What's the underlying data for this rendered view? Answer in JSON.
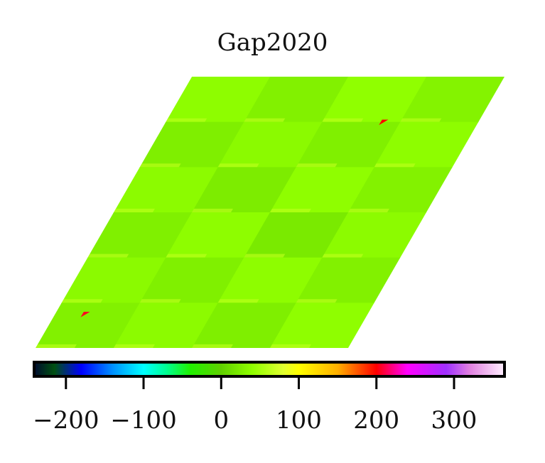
{
  "chart_data": {
    "type": "heatmap",
    "title": "Gap2020",
    "grid": false,
    "rows": [
      [
        38,
        28,
        40,
        30
      ],
      [
        26,
        36,
        27,
        38
      ],
      [
        37,
        24,
        39,
        29
      ],
      [
        27,
        38,
        22,
        37
      ],
      [
        36,
        27,
        38,
        28
      ],
      [
        28,
        37,
        26,
        39
      ]
    ],
    "hotspots": [
      {
        "row": 0.95,
        "col": 2.75,
        "value": 200
      },
      {
        "row": 5.2,
        "col": 0.35,
        "value": 205
      }
    ],
    "colorbar": {
      "range": [
        -241,
        365
      ],
      "ticks": [
        -200,
        -100,
        0,
        100,
        200,
        300
      ],
      "tick_labels": [
        "−200",
        "−100",
        "0",
        "100",
        "200",
        "300"
      ],
      "colormap_stops": [
        [
          -241,
          "#000a30"
        ],
        [
          -215,
          "#005010"
        ],
        [
          -180,
          "#0000ff"
        ],
        [
          -140,
          "#0090ff"
        ],
        [
          -100,
          "#00ffff"
        ],
        [
          -70,
          "#00ff90"
        ],
        [
          -40,
          "#20f000"
        ],
        [
          0,
          "#60d000"
        ],
        [
          40,
          "#90ff00"
        ],
        [
          80,
          "#e0ff30"
        ],
        [
          100,
          "#ffff00"
        ],
        [
          150,
          "#ffb000"
        ],
        [
          200,
          "#ff0000"
        ],
        [
          240,
          "#ff00ff"
        ],
        [
          290,
          "#a030ff"
        ],
        [
          320,
          "#e080e0"
        ],
        [
          365,
          "#fff0ff"
        ]
      ]
    }
  }
}
